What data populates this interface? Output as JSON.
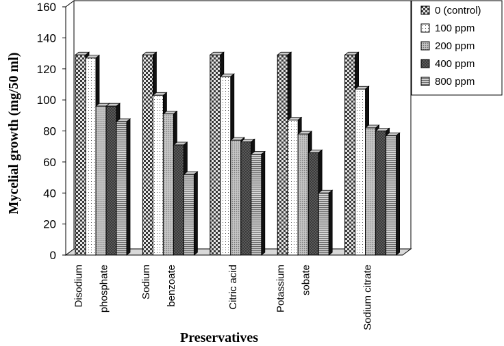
{
  "chart_data": {
    "type": "bar",
    "title": "",
    "xlabel": "Preservatives",
    "ylabel": "Mycelial growth (mg/50 ml)",
    "ylim": [
      0,
      160
    ],
    "yticks": [
      0,
      20,
      40,
      60,
      80,
      100,
      120,
      140,
      160
    ],
    "categories": [
      [
        "Disodium",
        "phosphate"
      ],
      [
        "Sodium",
        "benzoate"
      ],
      [
        "Citric acid"
      ],
      [
        "Potassium",
        "sobate"
      ],
      [
        "Sodium citrate"
      ]
    ],
    "series": [
      {
        "name": "0  (control)",
        "values": [
          129,
          129,
          129,
          129,
          129
        ]
      },
      {
        "name": "100  ppm",
        "values": [
          127,
          103,
          115,
          87,
          107
        ]
      },
      {
        "name": "200  ppm",
        "values": [
          96,
          91,
          74,
          78,
          82
        ]
      },
      {
        "name": "400  ppm",
        "values": [
          96,
          71,
          73,
          66,
          80
        ]
      },
      {
        "name": "800  ppm",
        "values": [
          86,
          52,
          65,
          40,
          77
        ]
      }
    ],
    "legend_position": "top-right",
    "grid": false
  }
}
